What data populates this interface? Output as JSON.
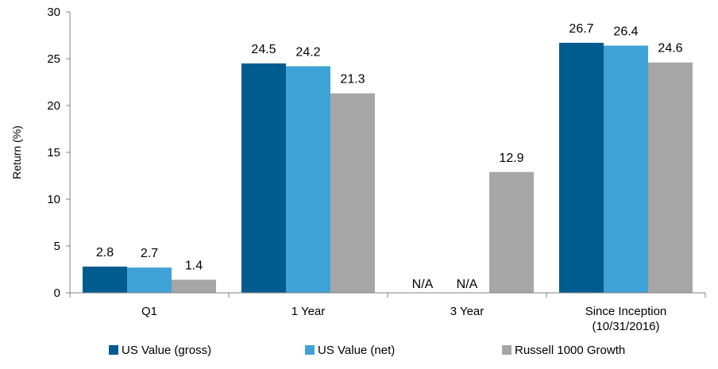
{
  "chart_data": {
    "type": "bar",
    "categories": [
      "Q1",
      "1 Year",
      "3 Year",
      "Since Inception\n(10/31/2016)"
    ],
    "series": [
      {
        "name": "US Value (gross)",
        "color": "#005B8E",
        "values": [
          2.8,
          24.5,
          null,
          26.7
        ],
        "labels": [
          "2.8",
          "24.5",
          "N/A",
          "26.7"
        ]
      },
      {
        "name": "US Value (net)",
        "color": "#3FA2D6",
        "values": [
          2.7,
          24.2,
          null,
          26.4
        ],
        "labels": [
          "2.7",
          "24.2",
          "N/A",
          "26.4"
        ]
      },
      {
        "name": "Russell 1000 Growth",
        "color": "#A6A6A6",
        "values": [
          1.4,
          21.3,
          12.9,
          24.6
        ],
        "labels": [
          "1.4",
          "21.3",
          "12.9",
          "24.6"
        ]
      }
    ],
    "ylabel": "Return (%)",
    "xlabel": "",
    "ylim": [
      0,
      30
    ],
    "yticks": [
      0,
      5,
      10,
      15,
      20,
      25,
      30
    ],
    "grid": false,
    "legend_position": "bottom"
  }
}
